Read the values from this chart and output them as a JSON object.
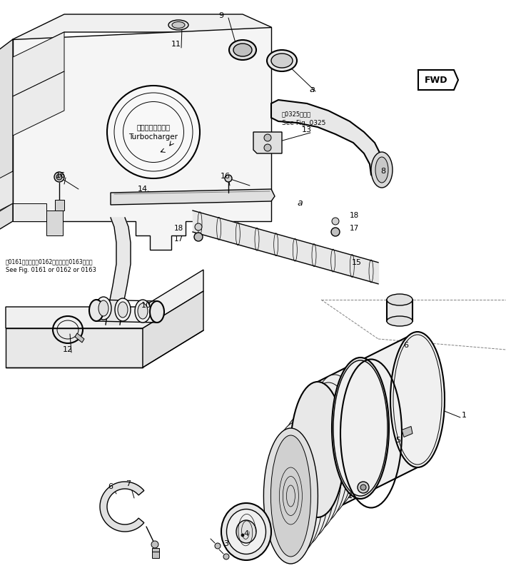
{
  "bg_color": "#ffffff",
  "lc": "#000000",
  "fig_width": 7.09,
  "fig_height": 8.17,
  "dpi": 100,
  "fwd_label": "FWD",
  "ref1_jp": "笤0325図参照",
  "ref1_en": "See Fig. 0325",
  "ref2_jp": "笤0161図または笤0162図または笤0163図参照",
  "ref2_en": "See Fig. 0161 or 0162 or 0163",
  "turbo_jp": "ターボチャージャ",
  "turbo_en": "Turbocharger"
}
